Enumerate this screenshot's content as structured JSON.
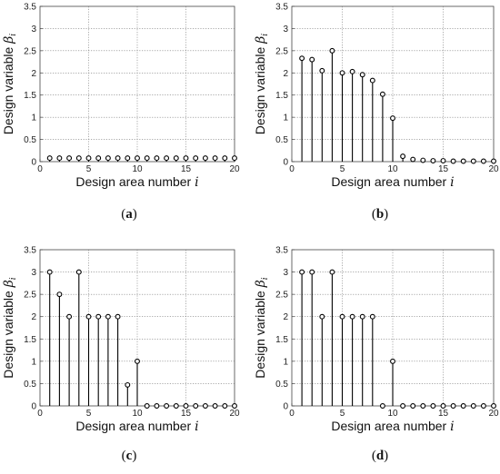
{
  "chart_data": [
    {
      "panel": "a",
      "type": "stem",
      "xlabel": "Design area number",
      "xlabel_symbol": "i",
      "ylabel": "Design variable",
      "ylabel_symbol": "β",
      "ylabel_subscript": "i",
      "xlim": [
        0,
        20
      ],
      "ylim": [
        0,
        3.5
      ],
      "xticks": [
        0,
        5,
        10,
        15,
        20
      ],
      "yticks": [
        0,
        0.5,
        1,
        1.5,
        2,
        2.5,
        3,
        3.5
      ],
      "grid": "dotted horizontal and vertical",
      "x": [
        1,
        2,
        3,
        4,
        5,
        6,
        7,
        8,
        9,
        10,
        11,
        12,
        13,
        14,
        15,
        16,
        17,
        18,
        19,
        20
      ],
      "values": [
        0.08,
        0.08,
        0.08,
        0.08,
        0.08,
        0.08,
        0.08,
        0.08,
        0.08,
        0.08,
        0.08,
        0.08,
        0.08,
        0.08,
        0.08,
        0.08,
        0.08,
        0.08,
        0.08,
        0.08
      ]
    },
    {
      "panel": "b",
      "type": "stem",
      "xlabel": "Design area number",
      "xlabel_symbol": "i",
      "ylabel": "Design variable",
      "ylabel_symbol": "β",
      "ylabel_subscript": "i",
      "xlim": [
        0,
        20
      ],
      "ylim": [
        0,
        3.5
      ],
      "xticks": [
        0,
        5,
        10,
        15,
        20
      ],
      "yticks": [
        0,
        0.5,
        1,
        1.5,
        2,
        2.5,
        3,
        3.5
      ],
      "grid": "dotted horizontal and vertical",
      "x": [
        1,
        2,
        3,
        4,
        5,
        6,
        7,
        8,
        9,
        10,
        11,
        12,
        13,
        14,
        15,
        16,
        17,
        18,
        19,
        20
      ],
      "values": [
        2.33,
        2.3,
        2.05,
        2.5,
        2.0,
        2.03,
        1.96,
        1.83,
        1.52,
        0.98,
        0.12,
        0.05,
        0.03,
        0.02,
        0.02,
        0.01,
        0.01,
        0.01,
        0.01,
        0.01
      ]
    },
    {
      "panel": "c",
      "type": "stem",
      "xlabel": "Design area number",
      "xlabel_symbol": "i",
      "ylabel": "Design variable",
      "ylabel_symbol": "β",
      "ylabel_subscript": "i",
      "xlim": [
        0,
        20
      ],
      "ylim": [
        0,
        3.5
      ],
      "xticks": [
        0,
        5,
        10,
        15,
        20
      ],
      "yticks": [
        0,
        0.5,
        1,
        1.5,
        2,
        2.5,
        3,
        3.5
      ],
      "grid": "dotted horizontal and vertical",
      "x": [
        1,
        2,
        3,
        4,
        5,
        6,
        7,
        8,
        9,
        10,
        11,
        12,
        13,
        14,
        15,
        16,
        17,
        18,
        19,
        20
      ],
      "values": [
        3.0,
        2.5,
        2.0,
        3.0,
        2.0,
        2.0,
        2.0,
        2.0,
        0.47,
        1.0,
        0,
        0,
        0,
        0,
        0,
        0,
        0,
        0,
        0,
        0
      ]
    },
    {
      "panel": "d",
      "type": "stem",
      "xlabel": "Design area number",
      "xlabel_symbol": "i",
      "ylabel": "Design variable",
      "ylabel_symbol": "β",
      "ylabel_subscript": "i",
      "xlim": [
        0,
        20
      ],
      "ylim": [
        0,
        3.5
      ],
      "xticks": [
        0,
        5,
        10,
        15,
        20
      ],
      "yticks": [
        0,
        0.5,
        1,
        1.5,
        2,
        2.5,
        3,
        3.5
      ],
      "grid": "dotted horizontal and vertical",
      "x": [
        1,
        2,
        3,
        4,
        5,
        6,
        7,
        8,
        9,
        10,
        11,
        12,
        13,
        14,
        15,
        16,
        17,
        18,
        19,
        20
      ],
      "values": [
        3.0,
        3.0,
        2.0,
        3.0,
        2.0,
        2.0,
        2.0,
        2.0,
        0,
        1.0,
        0,
        0,
        0,
        0,
        0,
        0,
        0,
        0,
        0,
        0
      ]
    }
  ],
  "captions": [
    "(a)",
    "(b)",
    "(c)",
    "(d)"
  ]
}
